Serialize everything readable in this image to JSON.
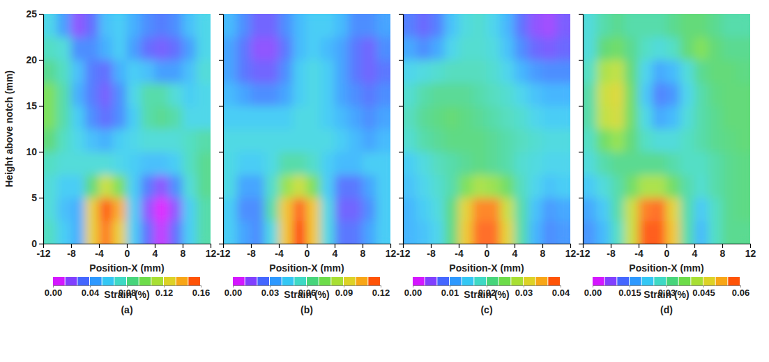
{
  "chart_data": [
    {
      "type": "heatmap",
      "caption": "(a)",
      "x_label": "Position-X (mm)",
      "y_label": "Height above notch (mm)",
      "xlim": [
        -12,
        12
      ],
      "ylim": [
        0,
        25
      ],
      "xticks": [
        -12,
        -8,
        -4,
        0,
        4,
        8,
        12
      ],
      "yticks": [
        0,
        5,
        10,
        15,
        20,
        25
      ],
      "x": [
        -11,
        -9,
        -7,
        -5,
        -3,
        -1,
        1,
        3,
        5,
        7,
        9,
        11
      ],
      "y": [
        1.25,
        3.75,
        6.25,
        8.75,
        11.25,
        13.75,
        16.25,
        18.75,
        21.25,
        23.75
      ],
      "values": [
        [
          0.075,
          0.06,
          0.05,
          0.13,
          0.15,
          0.13,
          0.06,
          0.03,
          0.01,
          0.03,
          0.06,
          0.08
        ],
        [
          0.07,
          0.055,
          0.05,
          0.13,
          0.155,
          0.14,
          0.06,
          0.02,
          0.005,
          0.02,
          0.06,
          0.08
        ],
        [
          0.07,
          0.06,
          0.06,
          0.09,
          0.12,
          0.1,
          0.06,
          0.035,
          0.02,
          0.04,
          0.07,
          0.085
        ],
        [
          0.075,
          0.07,
          0.07,
          0.07,
          0.07,
          0.065,
          0.06,
          0.055,
          0.055,
          0.06,
          0.075,
          0.085
        ],
        [
          0.09,
          0.075,
          0.065,
          0.055,
          0.05,
          0.06,
          0.065,
          0.07,
          0.07,
          0.07,
          0.075,
          0.08
        ],
        [
          0.1,
          0.08,
          0.06,
          0.04,
          0.03,
          0.04,
          0.06,
          0.08,
          0.085,
          0.08,
          0.065,
          0.065
        ],
        [
          0.1,
          0.08,
          0.05,
          0.035,
          0.025,
          0.04,
          0.065,
          0.08,
          0.08,
          0.07,
          0.06,
          0.065
        ],
        [
          0.085,
          0.075,
          0.055,
          0.035,
          0.03,
          0.05,
          0.06,
          0.055,
          0.045,
          0.045,
          0.055,
          0.07
        ],
        [
          0.075,
          0.07,
          0.04,
          0.04,
          0.05,
          0.06,
          0.045,
          0.03,
          0.025,
          0.03,
          0.045,
          0.065
        ],
        [
          0.065,
          0.045,
          0.02,
          0.03,
          0.055,
          0.06,
          0.05,
          0.04,
          0.035,
          0.04,
          0.055,
          0.065
        ]
      ],
      "colorbar": {
        "label": "Strain (%)",
        "range": [
          0,
          0.16
        ],
        "ticks": [
          {
            "value": 0,
            "label": "0.00"
          },
          0.04,
          0.08,
          0.12,
          0.16
        ]
      }
    },
    {
      "type": "heatmap",
      "caption": "(b)",
      "x_label": "Position-X (mm)",
      "tick_labels": "x",
      "xlim": [
        -12,
        12
      ],
      "ylim": [
        0,
        25
      ],
      "xticks": [
        -12,
        -8,
        -4,
        0,
        4,
        8,
        12
      ],
      "yticks": [
        0,
        5,
        10,
        15,
        20,
        25
      ],
      "x": [
        -11,
        -9,
        -7,
        -5,
        -3,
        -1,
        1,
        3,
        5,
        7,
        9,
        11
      ],
      "y": [
        1.25,
        3.75,
        6.25,
        8.75,
        11.25,
        13.75,
        16.25,
        18.75,
        21.25,
        23.75
      ],
      "values": [
        [
          0.045,
          0.035,
          0.03,
          0.05,
          0.1,
          0.12,
          0.1,
          0.05,
          0.025,
          0.025,
          0.035,
          0.045
        ],
        [
          0.045,
          0.03,
          0.03,
          0.06,
          0.1,
          0.115,
          0.1,
          0.05,
          0.02,
          0.02,
          0.03,
          0.045
        ],
        [
          0.05,
          0.035,
          0.035,
          0.055,
          0.08,
          0.09,
          0.075,
          0.045,
          0.025,
          0.025,
          0.035,
          0.045
        ],
        [
          0.05,
          0.045,
          0.045,
          0.05,
          0.06,
          0.06,
          0.055,
          0.045,
          0.04,
          0.04,
          0.045,
          0.045
        ],
        [
          0.05,
          0.05,
          0.05,
          0.05,
          0.05,
          0.05,
          0.05,
          0.05,
          0.045,
          0.04,
          0.035,
          0.04
        ],
        [
          0.045,
          0.045,
          0.045,
          0.045,
          0.045,
          0.05,
          0.05,
          0.045,
          0.04,
          0.035,
          0.03,
          0.035
        ],
        [
          0.04,
          0.035,
          0.03,
          0.03,
          0.035,
          0.045,
          0.05,
          0.045,
          0.035,
          0.03,
          0.025,
          0.03
        ],
        [
          0.035,
          0.025,
          0.02,
          0.02,
          0.03,
          0.045,
          0.05,
          0.045,
          0.035,
          0.025,
          0.02,
          0.025
        ],
        [
          0.035,
          0.025,
          0.015,
          0.015,
          0.025,
          0.04,
          0.045,
          0.04,
          0.035,
          0.025,
          0.02,
          0.03
        ],
        [
          0.04,
          0.03,
          0.02,
          0.02,
          0.03,
          0.04,
          0.045,
          0.045,
          0.04,
          0.03,
          0.03,
          0.035
        ]
      ],
      "colorbar": {
        "label": "Strain (%)",
        "range": [
          0,
          0.12
        ],
        "ticks": [
          {
            "value": 0,
            "label": "0.00"
          },
          0.03,
          0.06,
          0.09,
          0.12
        ]
      }
    },
    {
      "type": "heatmap",
      "caption": "(c)",
      "x_label": "Position-X (mm)",
      "tick_labels": "x",
      "xlim": [
        -12,
        12
      ],
      "ylim": [
        0,
        25
      ],
      "xticks": [
        -12,
        -8,
        -4,
        0,
        4,
        8,
        12
      ],
      "yticks": [
        0,
        5,
        10,
        15,
        20,
        25
      ],
      "x": [
        -11,
        -9,
        -7,
        -5,
        -3,
        -1,
        1,
        3,
        5,
        7,
        9,
        11
      ],
      "y": [
        1.25,
        3.75,
        6.25,
        8.75,
        11.25,
        13.75,
        16.25,
        18.75,
        21.25,
        23.75
      ],
      "values": [
        [
          0.013,
          0.014,
          0.016,
          0.022,
          0.033,
          0.038,
          0.038,
          0.032,
          0.02,
          0.013,
          0.01,
          0.011
        ],
        [
          0.013,
          0.015,
          0.017,
          0.022,
          0.032,
          0.037,
          0.037,
          0.03,
          0.02,
          0.014,
          0.011,
          0.012
        ],
        [
          0.014,
          0.016,
          0.018,
          0.02,
          0.025,
          0.028,
          0.027,
          0.024,
          0.019,
          0.016,
          0.014,
          0.015
        ],
        [
          0.015,
          0.017,
          0.019,
          0.02,
          0.021,
          0.022,
          0.021,
          0.02,
          0.018,
          0.017,
          0.016,
          0.016
        ],
        [
          0.018,
          0.02,
          0.021,
          0.022,
          0.022,
          0.022,
          0.021,
          0.02,
          0.019,
          0.018,
          0.017,
          0.017
        ],
        [
          0.019,
          0.021,
          0.022,
          0.023,
          0.022,
          0.021,
          0.02,
          0.019,
          0.018,
          0.016,
          0.015,
          0.015
        ],
        [
          0.018,
          0.02,
          0.021,
          0.021,
          0.021,
          0.02,
          0.019,
          0.018,
          0.016,
          0.014,
          0.013,
          0.013
        ],
        [
          0.016,
          0.017,
          0.018,
          0.019,
          0.019,
          0.019,
          0.018,
          0.016,
          0.013,
          0.011,
          0.01,
          0.01
        ],
        [
          0.012,
          0.01,
          0.012,
          0.016,
          0.018,
          0.018,
          0.017,
          0.014,
          0.01,
          0.007,
          0.006,
          0.007
        ],
        [
          0.009,
          0.007,
          0.009,
          0.014,
          0.017,
          0.018,
          0.016,
          0.013,
          0.008,
          0.005,
          0.004,
          0.006
        ]
      ],
      "colorbar": {
        "label": "Strain (%)",
        "range": [
          0,
          0.04
        ],
        "ticks": [
          {
            "value": 0,
            "label": "0.00"
          },
          0.01,
          0.02,
          0.03,
          0.04
        ]
      }
    },
    {
      "type": "heatmap",
      "caption": "(d)",
      "x_label": "Position-X (mm)",
      "tick_labels": "x",
      "xlim": [
        -12,
        12
      ],
      "ylim": [
        0,
        25
      ],
      "xticks": [
        -12,
        -8,
        -4,
        0,
        4,
        8,
        12
      ],
      "yticks": [
        0,
        5,
        10,
        15,
        20,
        25
      ],
      "x": [
        -11,
        -9,
        -7,
        -5,
        -3,
        -1,
        1,
        3,
        5,
        7,
        9,
        11
      ],
      "y": [
        1.25,
        3.75,
        6.25,
        8.75,
        11.25,
        13.75,
        16.25,
        18.75,
        21.25,
        23.75
      ],
      "values": [
        [
          0.016,
          0.02,
          0.028,
          0.045,
          0.058,
          0.058,
          0.05,
          0.03,
          0.02,
          0.028,
          0.032,
          0.032
        ],
        [
          0.018,
          0.022,
          0.03,
          0.045,
          0.056,
          0.057,
          0.048,
          0.03,
          0.022,
          0.028,
          0.032,
          0.033
        ],
        [
          0.022,
          0.026,
          0.03,
          0.036,
          0.042,
          0.042,
          0.036,
          0.03,
          0.027,
          0.03,
          0.032,
          0.033
        ],
        [
          0.026,
          0.03,
          0.032,
          0.032,
          0.032,
          0.032,
          0.03,
          0.028,
          0.028,
          0.03,
          0.032,
          0.033
        ],
        [
          0.028,
          0.036,
          0.04,
          0.034,
          0.028,
          0.026,
          0.026,
          0.028,
          0.03,
          0.032,
          0.033,
          0.034
        ],
        [
          0.03,
          0.044,
          0.046,
          0.036,
          0.025,
          0.018,
          0.02,
          0.026,
          0.03,
          0.032,
          0.034,
          0.034
        ],
        [
          0.03,
          0.045,
          0.047,
          0.036,
          0.022,
          0.014,
          0.016,
          0.024,
          0.03,
          0.033,
          0.034,
          0.034
        ],
        [
          0.028,
          0.042,
          0.044,
          0.034,
          0.024,
          0.018,
          0.02,
          0.026,
          0.032,
          0.034,
          0.034,
          0.033
        ],
        [
          0.026,
          0.034,
          0.036,
          0.032,
          0.028,
          0.026,
          0.028,
          0.034,
          0.038,
          0.034,
          0.032,
          0.032
        ],
        [
          0.026,
          0.03,
          0.032,
          0.03,
          0.03,
          0.03,
          0.032,
          0.034,
          0.034,
          0.032,
          0.03,
          0.03
        ]
      ],
      "colorbar": {
        "label": "Strain (%)",
        "range": [
          0,
          0.06
        ],
        "ticks": [
          {
            "value": 0,
            "label": "0.00"
          },
          0.015,
          0.03,
          0.045,
          0.06
        ]
      }
    }
  ]
}
